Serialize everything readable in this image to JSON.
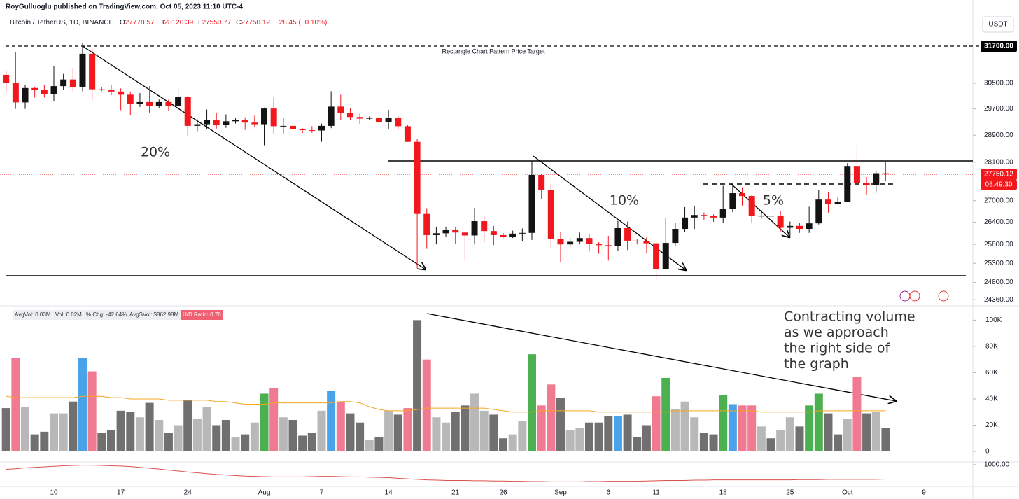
{
  "header": {
    "publisher": "RoyGulluoglu published on TradingView.com, Oct 05, 2023 11:10 UTC-4",
    "symbol": "Bitcoin / TetherUS, 1D, BINANCE",
    "ohlc": [
      {
        "key": "O",
        "value": "27778.57"
      },
      {
        "key": "H",
        "value": "28120.39"
      },
      {
        "key": "L",
        "value": "27550.77"
      },
      {
        "key": "C",
        "value": "27750.12"
      }
    ],
    "change": "−28.45 (−0.10%)",
    "currency": "USDT"
  },
  "chart_data": {
    "type": "candlestick",
    "log_scale": true,
    "grid": false,
    "up_color": "#131313",
    "down_color": "#f2161d",
    "categories": [
      null,
      null,
      null,
      null,
      null,
      "10",
      null,
      null,
      null,
      null,
      null,
      null,
      "17",
      null,
      null,
      null,
      null,
      null,
      null,
      "24",
      null,
      null,
      null,
      null,
      null,
      null,
      null,
      "Aug",
      null,
      null,
      null,
      null,
      null,
      "7",
      null,
      null,
      null,
      null,
      null,
      null,
      "14",
      null,
      null,
      null,
      null,
      null,
      null,
      "21",
      null,
      null,
      null,
      null,
      "26",
      null,
      null,
      null,
      null,
      null,
      "Sep",
      null,
      null,
      null,
      null,
      "6",
      null,
      null,
      null,
      null,
      "11",
      null,
      null,
      null,
      null,
      null,
      null,
      "18",
      null,
      null,
      null,
      null,
      null,
      null,
      "25",
      null,
      null,
      null,
      null,
      null,
      "Oct",
      null,
      null,
      null,
      null,
      null,
      null,
      null,
      "9"
    ],
    "open": [
      30770,
      30500,
      29900,
      30350,
      30290,
      30170,
      30410,
      30620,
      30380,
      31450,
      30310,
      30290,
      30240,
      30140,
      29860,
      29910,
      29800,
      29910,
      29800,
      30080,
      29180,
      29230,
      29350,
      29210,
      29320,
      29360,
      29280,
      29230,
      29710,
      29170,
      29180,
      29080,
      29050,
      29040,
      29180,
      29770,
      29580,
      29450,
      29400,
      29420,
      29300,
      29420,
      29170,
      28700,
      26630,
      26050,
      26100,
      26190,
      26120,
      26040,
      26430,
      26160,
      26050,
      26010,
      26090,
      26110,
      27730,
      27300,
      25940,
      25800,
      25870,
      25970,
      25810,
      25780,
      25750,
      26240,
      25900,
      25890,
      25830,
      25150,
      25840,
      26220,
      26530,
      26600,
      26570,
      26530,
      26760,
      27210,
      27130,
      26570,
      26580,
      26580,
      26250,
      26300,
      26220,
      26370,
      27030,
      26910,
      26970,
      27990,
      27500,
      27430,
      27778.57,
      null,
      null,
      null,
      null
    ],
    "high": [
      30880,
      31500,
      30450,
      30380,
      30440,
      31050,
      30800,
      30990,
      31800,
      31630,
      30390,
      30440,
      30340,
      30240,
      30190,
      30410,
      29990,
      29990,
      30340,
      30100,
      29380,
      29680,
      29570,
      29530,
      29410,
      29440,
      29490,
      29740,
      30050,
      29410,
      29310,
      29110,
      29170,
      29250,
      30250,
      30140,
      29730,
      29550,
      29470,
      29450,
      29670,
      29470,
      29210,
      28780,
      26790,
      26270,
      26280,
      26260,
      26140,
      26800,
      26560,
      26300,
      26110,
      26170,
      26230,
      28140,
      27760,
      27480,
      26130,
      25980,
      26120,
      26090,
      25860,
      26030,
      26440,
      26420,
      25940,
      25990,
      25880,
      26520,
      26390,
      26820,
      26850,
      26670,
      26620,
      27420,
      27480,
      27380,
      27160,
      26740,
      26630,
      26720,
      26420,
      26390,
      26830,
      27310,
      27230,
      27090,
      28070,
      28600,
      27670,
      27840,
      28120.39,
      null,
      null,
      null,
      null
    ],
    "low": [
      30200,
      29700,
      29700,
      30050,
      30050,
      29950,
      30300,
      30250,
      30250,
      29950,
      30250,
      30120,
      29660,
      29500,
      29760,
      29570,
      29720,
      29640,
      29750,
      28860,
      29020,
      29080,
      29100,
      29120,
      29250,
      29060,
      29130,
      28600,
      28950,
      28950,
      28750,
      28960,
      28970,
      28700,
      29110,
      29360,
      29370,
      29240,
      29360,
      29250,
      29080,
      29060,
      28700,
      25170,
      25680,
      25800,
      26010,
      25810,
      25370,
      25800,
      25860,
      25780,
      25980,
      25970,
      25880,
      25920,
      27050,
      25690,
      25330,
      25720,
      25800,
      25610,
      25550,
      25370,
      25620,
      25650,
      25800,
      25560,
      24900,
      25130,
      25770,
      26130,
      26220,
      26470,
      26410,
      26390,
      26680,
      26860,
      26370,
      26500,
      26520,
      26150,
      26010,
      26110,
      26110,
      26340,
      26670,
      26890,
      26970,
      27330,
      27160,
      27220,
      27550.77,
      null,
      null,
      null,
      null
    ],
    "close": [
      30500,
      29900,
      30350,
      30290,
      30170,
      30410,
      30620,
      30380,
      31450,
      30310,
      30290,
      30240,
      30140,
      29860,
      29910,
      29800,
      29910,
      29800,
      30080,
      29180,
      29230,
      29350,
      29210,
      29320,
      29360,
      29280,
      29230,
      29710,
      29170,
      29180,
      29080,
      29050,
      29040,
      29180,
      29770,
      29580,
      29450,
      29400,
      29420,
      29300,
      29420,
      29170,
      28700,
      26630,
      26050,
      26100,
      26190,
      26120,
      26040,
      26430,
      26160,
      26050,
      26010,
      26090,
      26110,
      27730,
      27300,
      25940,
      25800,
      25870,
      25970,
      25810,
      25780,
      25750,
      26240,
      25900,
      25890,
      25830,
      25150,
      25840,
      26220,
      26530,
      26600,
      26570,
      26530,
      26760,
      27210,
      27130,
      26570,
      26580,
      26580,
      26250,
      26300,
      26220,
      26370,
      27030,
      26910,
      26970,
      27990,
      27500,
      27430,
      27780,
      27750.12,
      null,
      null,
      null,
      null
    ],
    "ylim": [
      24240,
      32730
    ],
    "yticks": [
      {
        "value": 30500,
        "label": "30500.00"
      },
      {
        "value": 29700,
        "label": "29700.00"
      },
      {
        "value": 28900,
        "label": "28900.00"
      },
      {
        "value": 28100,
        "label": "28100.00"
      },
      {
        "value": 27000,
        "label": "27000.00"
      },
      {
        "value": 26400,
        "label": "26400.00"
      },
      {
        "value": 25800,
        "label": "25800.00"
      },
      {
        "value": 25300,
        "label": "25300.00"
      },
      {
        "value": 24800,
        "label": "24800.00"
      },
      {
        "value": 24360,
        "label": "24360.00"
      }
    ],
    "target": {
      "value": 31700,
      "label": "31700.00",
      "text": "Rectangle Chart Pattern Price Target"
    },
    "last_price": {
      "value": 27750.12,
      "label": "27750.12",
      "countdown": "08:49:30"
    },
    "annotations": [
      "20%",
      "10%",
      "5%"
    ],
    "volume": {
      "values": [
        33000,
        71000,
        34000,
        13000,
        15000,
        29000,
        29000,
        38000,
        71000,
        61000,
        14000,
        16000,
        31000,
        30000,
        26000,
        37000,
        24000,
        14000,
        20000,
        39000,
        25000,
        34000,
        20000,
        24000,
        11000,
        13000,
        22000,
        44000,
        48000,
        26000,
        24000,
        12000,
        14000,
        31000,
        46000,
        38000,
        29000,
        22000,
        9000,
        11000,
        31000,
        28000,
        33000,
        100000,
        70000,
        26000,
        22000,
        30000,
        35000,
        44000,
        31000,
        28000,
        10000,
        13000,
        23000,
        74000,
        35000,
        51000,
        41000,
        16000,
        18000,
        22000,
        22000,
        27000,
        27000,
        28000,
        11000,
        20000,
        42000,
        56000,
        32000,
        38000,
        26000,
        14000,
        13000,
        43000,
        36000,
        35000,
        35000,
        19000,
        10000,
        16000,
        26000,
        19000,
        35000,
        44000,
        29000,
        13000,
        25000,
        57000,
        29000,
        30000,
        18000,
        null,
        null,
        null,
        null
      ],
      "colors": [
        "#707070",
        "#f07a91",
        "#b8b8b8",
        "#707070",
        "#707070",
        "#b8b8b8",
        "#b8b8b8",
        "#707070",
        "#4aa3e8",
        "#f07a91",
        "#707070",
        "#707070",
        "#707070",
        "#707070",
        "#b8b8b8",
        "#707070",
        "#b8b8b8",
        "#707070",
        "#b8b8b8",
        "#707070",
        "#b8b8b8",
        "#b8b8b8",
        "#707070",
        "#707070",
        "#b8b8b8",
        "#707070",
        "#b8b8b8",
        "#4caf50",
        "#f07a91",
        "#b8b8b8",
        "#707070",
        "#707070",
        "#707070",
        "#b8b8b8",
        "#4aa3e8",
        "#f07a91",
        "#707070",
        "#707070",
        "#b8b8b8",
        "#707070",
        "#b8b8b8",
        "#707070",
        "#f07a91",
        "#707070",
        "#f07a91",
        "#b8b8b8",
        "#b8b8b8",
        "#707070",
        "#707070",
        "#b8b8b8",
        "#b8b8b8",
        "#707070",
        "#707070",
        "#b8b8b8",
        "#b8b8b8",
        "#4caf50",
        "#f07a91",
        "#f07a91",
        "#707070",
        "#b8b8b8",
        "#b8b8b8",
        "#707070",
        "#707070",
        "#707070",
        "#4aa3e8",
        "#707070",
        "#707070",
        "#707070",
        "#f07a91",
        "#4caf50",
        "#b8b8b8",
        "#b8b8b8",
        "#b8b8b8",
        "#707070",
        "#707070",
        "#4caf50",
        "#4aa3e8",
        "#f07a91",
        "#f07a91",
        "#b8b8b8",
        "#707070",
        "#b8b8b8",
        "#b8b8b8",
        "#707070",
        "#4caf50",
        "#4caf50",
        "#707070",
        "#707070",
        "#b8b8b8",
        "#f07a91",
        "#707070",
        "#b8b8b8",
        "#707070",
        null,
        null,
        null,
        null
      ],
      "ma": {
        "color": "#f5a623",
        "values": [
          42000,
          41000,
          41000,
          41000,
          41000,
          41000,
          41000,
          41000,
          42000,
          42000,
          42000,
          41000,
          41000,
          40000,
          40000,
          40000,
          40000,
          39000,
          39000,
          39000,
          39000,
          39000,
          38000,
          38000,
          37000,
          36000,
          36000,
          36000,
          37000,
          37000,
          37000,
          37000,
          37000,
          37000,
          37000,
          38000,
          38000,
          37000,
          34000,
          32000,
          31000,
          31000,
          31000,
          32000,
          33000,
          33000,
          33000,
          33000,
          33000,
          33000,
          33000,
          32000,
          31000,
          30000,
          30000,
          30000,
          31000,
          31000,
          31000,
          31000,
          31000,
          31000,
          30000,
          30000,
          30000,
          30000,
          30000,
          30000,
          30000,
          30000,
          31000,
          31000,
          31000,
          31000,
          31000,
          31000,
          31000,
          31000,
          31000,
          30000,
          30000,
          30000,
          30000,
          30000,
          30000,
          31000,
          31000,
          31000,
          31000,
          31000,
          31000,
          31000,
          31000,
          null,
          null,
          null,
          null
        ]
      },
      "ylim": [
        0,
        105000
      ],
      "yticks": [
        {
          "value": 100000,
          "label": "100K"
        },
        {
          "value": 80000,
          "label": "80K"
        },
        {
          "value": 60000,
          "label": "60K"
        },
        {
          "value": 40000,
          "label": "40K"
        },
        {
          "value": 20000,
          "label": "20K"
        },
        0
      ],
      "legend": [
        "AvgVol: 0.03M",
        "Vol: 0.02M",
        "% Chg: -42.64%",
        "AvgSVol: $862.98M",
        "U/D Ratio: 0.78"
      ],
      "note": [
        "Contracting volume",
        "as we approach",
        "the right side of",
        "the graph"
      ]
    },
    "indicator": {
      "color": "#d9534f",
      "values": [
        983,
        985,
        988,
        990,
        992,
        994,
        996,
        997,
        998,
        998,
        997,
        996,
        995,
        993,
        990,
        987,
        984,
        980,
        977,
        973,
        970,
        967,
        964,
        962,
        960,
        958,
        957,
        956,
        955,
        955,
        955,
        955,
        956,
        957,
        957,
        956,
        955,
        955,
        954,
        953,
        952,
        950,
        948,
        946,
        944,
        943,
        942,
        942,
        942,
        941,
        941,
        940,
        940,
        939,
        939,
        938,
        938,
        937,
        937,
        937,
        937,
        938,
        938,
        939,
        939,
        939,
        939,
        940,
        941,
        942,
        942,
        942,
        943,
        943,
        944,
        944,
        944,
        944,
        944,
        944,
        944,
        944,
        944,
        945,
        945,
        945,
        946,
        946,
        946,
        946,
        946,
        946,
        947,
        null,
        null,
        null,
        null
      ],
      "ylim": [
        920,
        1010
      ],
      "yticks": [
        {
          "value": 1000,
          "label": "1000.00"
        }
      ]
    }
  }
}
